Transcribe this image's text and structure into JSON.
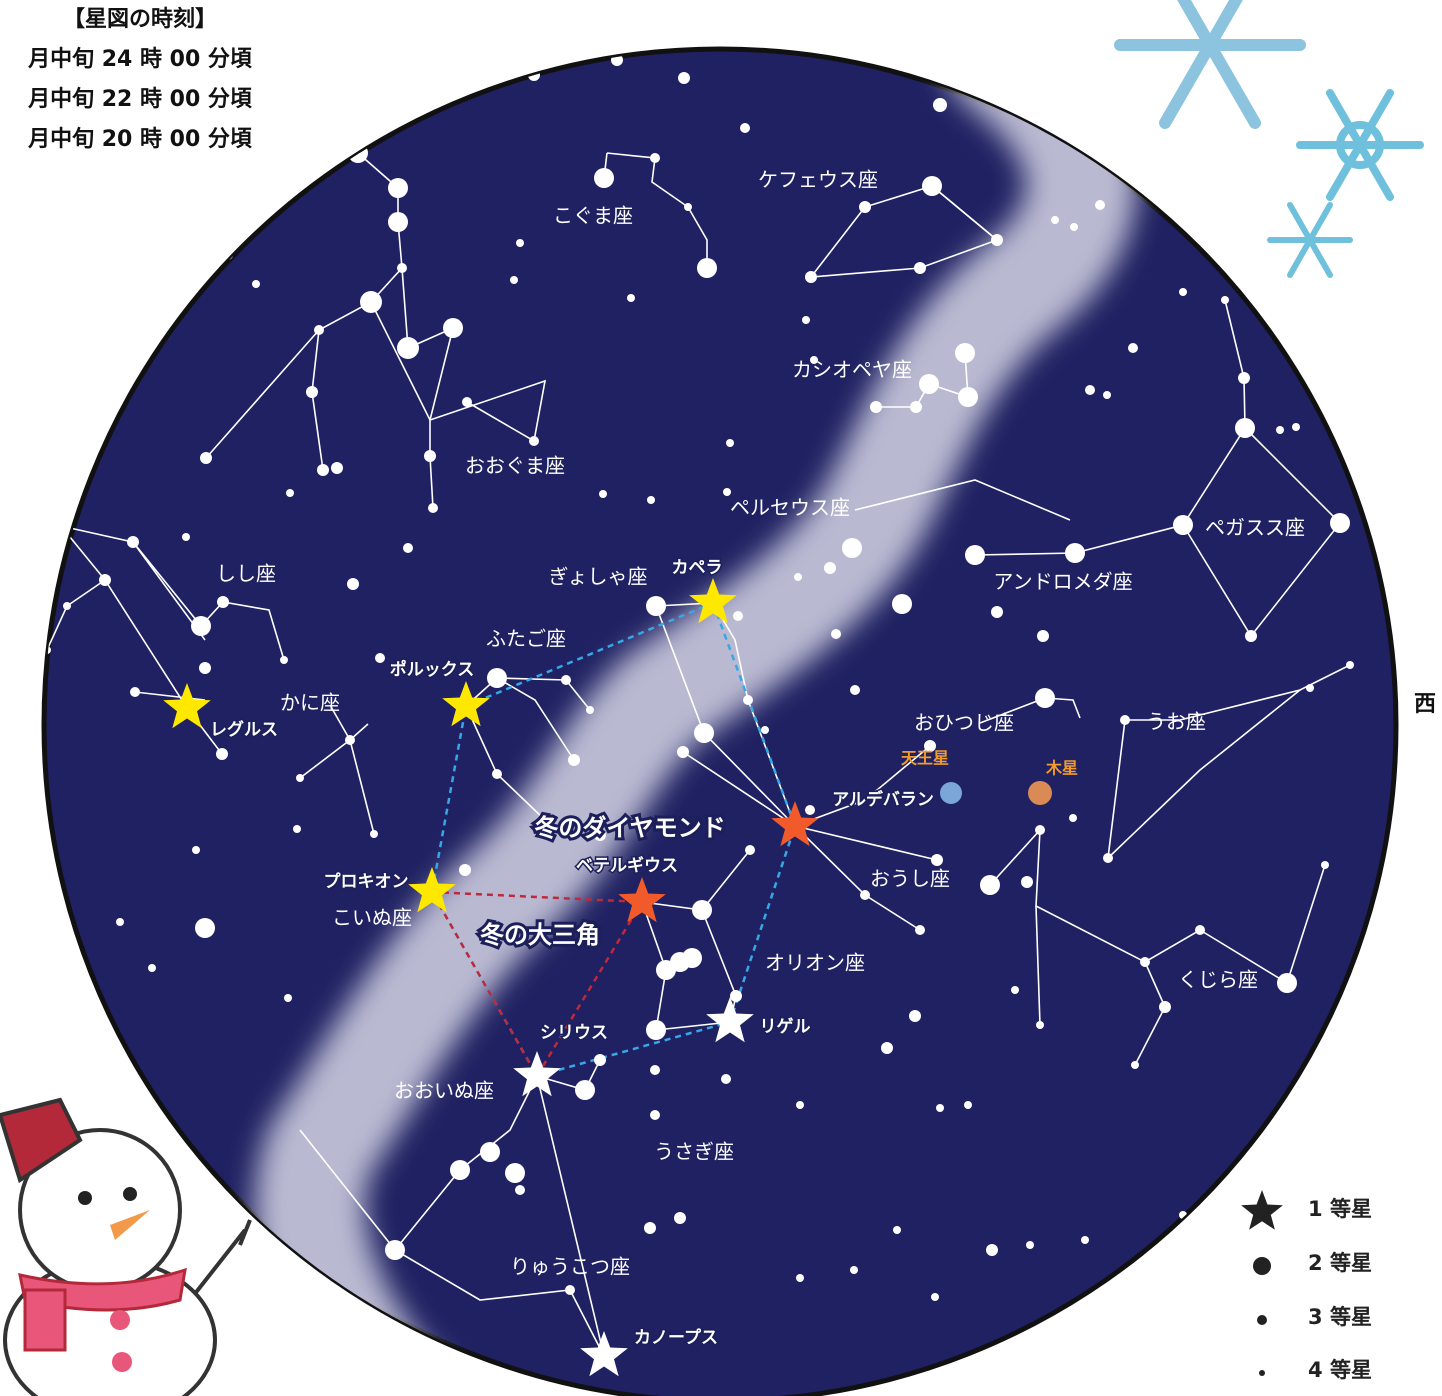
{
  "header": {
    "title": "【星図の時刻】",
    "times": [
      "月中旬 24 時 00 分頃",
      "月中旬 22 時 00 分頃",
      "月中旬 20 時 00 分頃"
    ]
  },
  "direction": "西",
  "constellations": [
    "ケフェウス座",
    "こぐま座",
    "カシオペヤ座",
    "おおぐま座",
    "ペルセウス座",
    "ぎょしゃ座",
    "しし座",
    "ふたご座",
    "かに座",
    "アンドロメダ座",
    "ペガスス座",
    "おひつじ座",
    "うお座",
    "おうし座",
    "こいぬ座",
    "オリオン座",
    "くじら座",
    "おおいぬ座",
    "うさぎ座",
    "りゅうこつ座"
  ],
  "bright_stars": [
    "カペラ",
    "ポルックス",
    "レグルス",
    "アルデバラン",
    "ベテルギウス",
    "プロキオン",
    "シリウス",
    "リゲル",
    "カノープス"
  ],
  "planets": [
    "天王星",
    "木星"
  ],
  "asterisms": [
    "冬のダイヤモンド",
    "冬の大三角"
  ],
  "legend": [
    "1 等星",
    "2 等星",
    "3 等星",
    "4 等星"
  ]
}
